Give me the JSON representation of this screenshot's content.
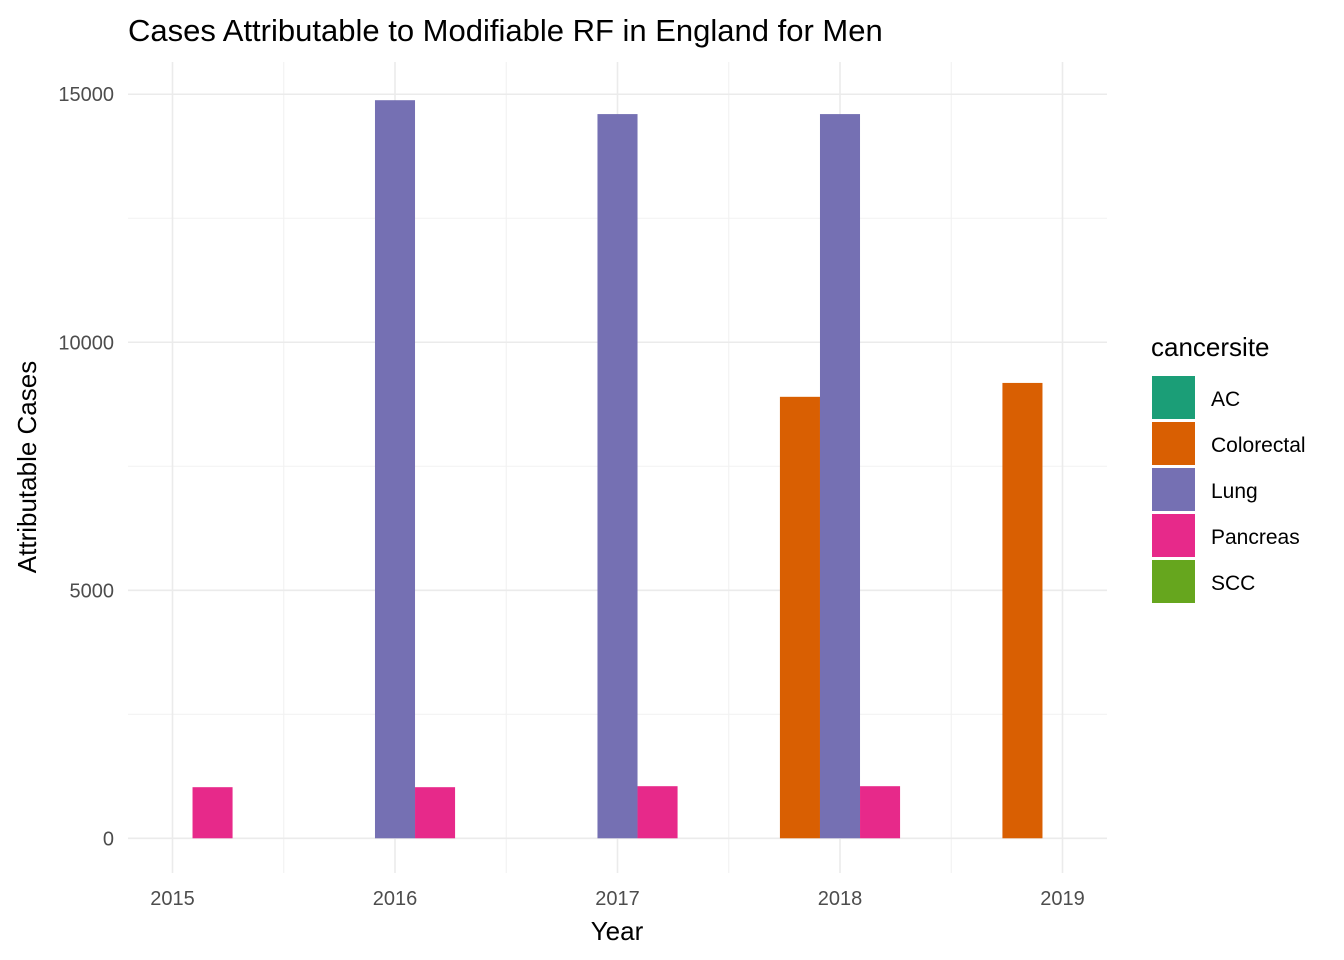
{
  "chart_data": {
    "type": "bar",
    "title": "Cases Attributable to Modifiable RF in England for Men",
    "xlabel": "Year",
    "ylabel": "Attributable Cases",
    "x_ticks": [
      "2015",
      "2016",
      "2017",
      "2018",
      "2019"
    ],
    "y_ticks": [
      "0",
      "5000",
      "10000",
      "15000"
    ],
    "xlim": [
      2014.8,
      2019.2
    ],
    "ylim": [
      -700,
      15650
    ],
    "grid": true,
    "legend": {
      "title": "cancersite",
      "placement": "right",
      "entries": [
        {
          "name": "AC",
          "color": "#1b9e77"
        },
        {
          "name": "Colorectal",
          "color": "#d95f02"
        },
        {
          "name": "Lung",
          "color": "#7570b3"
        },
        {
          "name": "Pancreas",
          "color": "#e7298a"
        },
        {
          "name": "SCC",
          "color": "#66a61e"
        }
      ]
    },
    "bars": [
      {
        "year": 2015,
        "series": "Pancreas",
        "value": 1030,
        "slot": 1
      },
      {
        "year": 2016,
        "series": "Lung",
        "value": 14880,
        "slot": 0
      },
      {
        "year": 2016,
        "series": "Pancreas",
        "value": 1030,
        "slot": 1
      },
      {
        "year": 2017,
        "series": "Lung",
        "value": 14600,
        "slot": 0
      },
      {
        "year": 2017,
        "series": "Pancreas",
        "value": 1050,
        "slot": 1
      },
      {
        "year": 2018,
        "series": "Colorectal",
        "value": 8900,
        "slot": -1
      },
      {
        "year": 2018,
        "series": "Lung",
        "value": 14600,
        "slot": 0
      },
      {
        "year": 2018,
        "series": "Pancreas",
        "value": 1050,
        "slot": 1
      },
      {
        "year": 2019,
        "series": "Colorectal",
        "value": 9180,
        "slot": -1
      }
    ]
  }
}
